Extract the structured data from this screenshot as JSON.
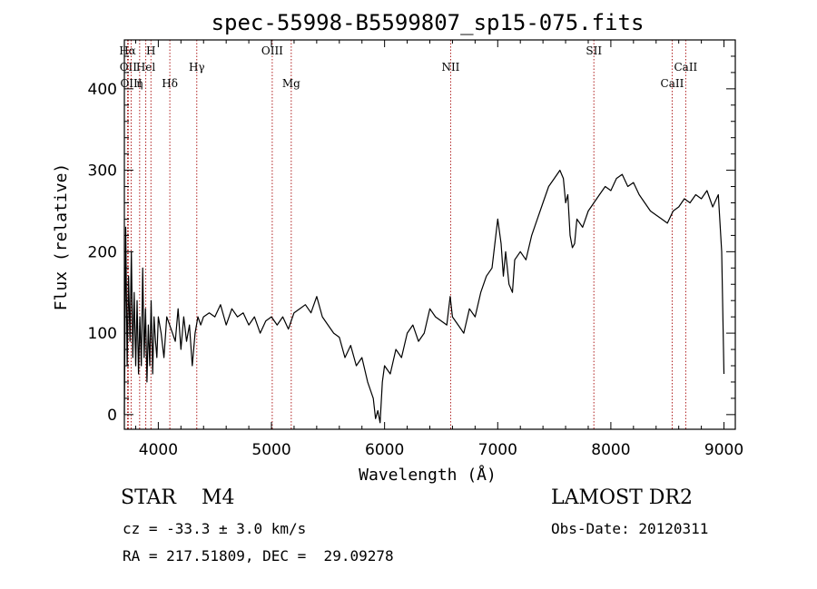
{
  "header": {
    "title": "spec-55998-B5599807_sp15-075.fits"
  },
  "info": {
    "object_class": "STAR    M4",
    "survey": "LAMOST DR2",
    "redshift": "cz = -33.3 ± 3.0 km/s",
    "obs_date": "Obs-Date: 20120311",
    "coordinates": "RA = 217.51809, DEC =  29.09278"
  },
  "chart_data": {
    "type": "line",
    "title": "spec-55998-B5599807_sp15-075.fits",
    "xlabel": "Wavelength (Å)",
    "ylabel": "Flux (relative)",
    "xlim": [
      3700,
      9100
    ],
    "ylim": [
      -18,
      460
    ],
    "x_ticks": [
      4000,
      5000,
      6000,
      7000,
      8000,
      9000
    ],
    "y_ticks": [
      0,
      100,
      200,
      300,
      400
    ],
    "grid": false,
    "line_color": "#000000",
    "marker_color": "#b02020",
    "lines": [
      {
        "label": "Hα",
        "x": 3728,
        "tier": 0
      },
      {
        "label": "OII",
        "x": 3735,
        "tier": 1
      },
      {
        "label": "OIII",
        "x": 3760,
        "tier": 2
      },
      {
        "label": "η",
        "x": 3835,
        "tier": 2
      },
      {
        "label": "Hel",
        "x": 3889,
        "tier": 1
      },
      {
        "label": "H",
        "x": 3935,
        "tier": 0
      },
      {
        "label": "Hδ",
        "x": 4102,
        "tier": 2
      },
      {
        "label": "Hγ",
        "x": 4340,
        "tier": 1
      },
      {
        "label": "OIII",
        "x": 5007,
        "tier": 0
      },
      {
        "label": "Mg",
        "x": 5175,
        "tier": 2
      },
      {
        "label": "NII",
        "x": 6584,
        "tier": 1
      },
      {
        "label": "SII",
        "x": 7850,
        "tier": 0
      },
      {
        "label": "CaII",
        "x": 8542,
        "tier": 2
      },
      {
        "label": "CaII",
        "x": 8662,
        "tier": 1
      }
    ],
    "series": [
      {
        "x": [
          3700,
          3712,
          3725,
          3737,
          3750,
          3762,
          3775,
          3787,
          3800,
          3812,
          3825,
          3837,
          3850,
          3862,
          3875,
          3887,
          3900,
          3912,
          3925,
          3937,
          3950,
          3962,
          3975,
          3987,
          4000,
          4025,
          4050,
          4075,
          4100,
          4125,
          4150,
          4175,
          4200,
          4225,
          4250,
          4275,
          4300,
          4325,
          4350,
          4375,
          4400,
          4450,
          4500,
          4550,
          4600,
          4650,
          4700,
          4750,
          4800,
          4850,
          4900,
          4950,
          5000,
          5050,
          5100,
          5150,
          5200,
          5250,
          5300,
          5350,
          5400,
          5450,
          5500,
          5550,
          5600,
          5650,
          5700,
          5750,
          5800,
          5850,
          5900,
          5920,
          5940,
          5960,
          5980,
          6000,
          6050,
          6100,
          6150,
          6200,
          6250,
          6300,
          6350,
          6400,
          6450,
          6500,
          6550,
          6580,
          6600,
          6650,
          6700,
          6750,
          6800,
          6850,
          6900,
          6950,
          7000,
          7030,
          7050,
          7070,
          7100,
          7130,
          7150,
          7200,
          7250,
          7300,
          7350,
          7400,
          7450,
          7500,
          7550,
          7580,
          7600,
          7620,
          7640,
          7660,
          7680,
          7700,
          7750,
          7800,
          7850,
          7900,
          7950,
          8000,
          8050,
          8100,
          8150,
          8200,
          8250,
          8300,
          8350,
          8400,
          8450,
          8500,
          8550,
          8600,
          8650,
          8700,
          8750,
          8800,
          8850,
          8900,
          8950,
          8980,
          9000
        ],
        "y": [
          0,
          230,
          60,
          170,
          90,
          200,
          70,
          150,
          60,
          140,
          50,
          120,
          60,
          180,
          70,
          130,
          40,
          110,
          60,
          140,
          50,
          120,
          90,
          70,
          120,
          100,
          70,
          120,
          110,
          100,
          90,
          130,
          80,
          120,
          90,
          110,
          60,
          100,
          120,
          110,
          120,
          125,
          120,
          135,
          110,
          130,
          120,
          125,
          110,
          120,
          100,
          115,
          120,
          110,
          120,
          105,
          125,
          130,
          135,
          125,
          145,
          120,
          110,
          100,
          95,
          70,
          85,
          60,
          70,
          40,
          20,
          -5,
          5,
          -10,
          40,
          60,
          50,
          80,
          70,
          100,
          110,
          90,
          100,
          130,
          120,
          115,
          110,
          145,
          120,
          110,
          100,
          130,
          120,
          150,
          170,
          180,
          240,
          210,
          170,
          200,
          160,
          150,
          190,
          200,
          190,
          220,
          240,
          260,
          280,
          290,
          300,
          290,
          260,
          270,
          220,
          205,
          210,
          240,
          230,
          250,
          260,
          270,
          280,
          275,
          290,
          295,
          280,
          285,
          270,
          260,
          250,
          245,
          240,
          235,
          250,
          255,
          265,
          260,
          270,
          265,
          275,
          255,
          270,
          200,
          50
        ]
      }
    ]
  }
}
